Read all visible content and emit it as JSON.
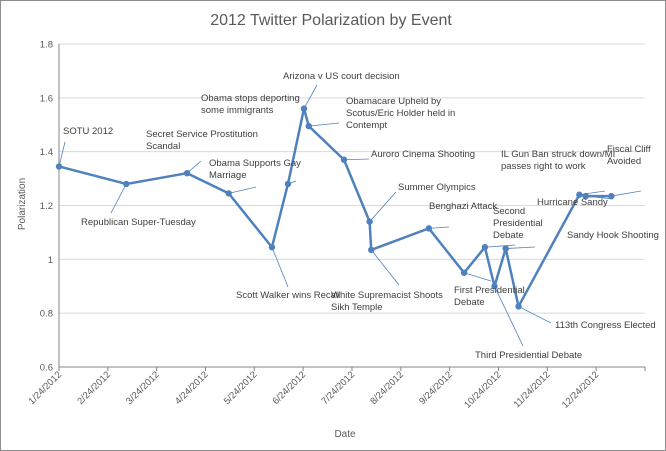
{
  "chart_data": {
    "type": "line",
    "title": "2012 Twitter Polarization by Event",
    "xlabel": "Date",
    "ylabel": "Polarization",
    "ylim": [
      0.6,
      1.8
    ],
    "yticks": [
      "0.6",
      "0.8",
      "1",
      "1.2",
      "1.4",
      "1.6",
      "1.8"
    ],
    "xticks": [
      "1/24/2012",
      "2/24/2012",
      "3/24/2012",
      "4/24/2012",
      "5/24/2012",
      "6/24/2012",
      "7/24/2012",
      "8/24/2012",
      "9/24/2012",
      "10/24/2012",
      "11/24/2012",
      "12/24/2012"
    ],
    "grid": true,
    "legend": "none",
    "line_color": "#4f81bd",
    "points": [
      {
        "x": "2012-01-24",
        "y": 1.345
      },
      {
        "x": "2012-03-06",
        "y": 1.28
      },
      {
        "x": "2012-04-13",
        "y": 1.32
      },
      {
        "x": "2012-05-09",
        "y": 1.245
      },
      {
        "x": "2012-06-05",
        "y": 1.045
      },
      {
        "x": "2012-06-15",
        "y": 1.28
      },
      {
        "x": "2012-06-25",
        "y": 1.56
      },
      {
        "x": "2012-06-28",
        "y": 1.495
      },
      {
        "x": "2012-07-20",
        "y": 1.37
      },
      {
        "x": "2012-08-05",
        "y": 1.14
      },
      {
        "x": "2012-08-06",
        "y": 1.035
      },
      {
        "x": "2012-09-11",
        "y": 1.115
      },
      {
        "x": "2012-10-03",
        "y": 0.95
      },
      {
        "x": "2012-10-16",
        "y": 1.045
      },
      {
        "x": "2012-10-22",
        "y": 0.9
      },
      {
        "x": "2012-10-29",
        "y": 1.04
      },
      {
        "x": "2012-11-06",
        "y": 0.825
      },
      {
        "x": "2012-12-14",
        "y": 1.24
      },
      {
        "x": "2012-12-18",
        "y": 1.235
      },
      {
        "x": "2013-01-03",
        "y": 1.235
      }
    ],
    "annotations": [
      {
        "lines": [
          "SOTU 2012"
        ]
      },
      {
        "lines": [
          "Republican Super-Tuesday"
        ]
      },
      {
        "lines": [
          "Secret Service Prostitution",
          "Scandal"
        ]
      },
      {
        "lines": [
          "Obama Supports Gay",
          "Marriage"
        ]
      },
      {
        "lines": [
          "Scott Walker wins Recall"
        ]
      },
      {
        "lines": [
          "Obama stops deporting",
          "some immigrants"
        ]
      },
      {
        "lines": [
          "Arizona v US court decision"
        ]
      },
      {
        "lines": [
          "Obamacare Upheld by",
          "Scotus/Eric Holder held in",
          "Contempt"
        ]
      },
      {
        "lines": [
          "Auroro Cinema Shooting"
        ]
      },
      {
        "lines": [
          "Summer Olympics"
        ]
      },
      {
        "lines": [
          "White Supremacist Shoots",
          "Sikh Temple"
        ]
      },
      {
        "lines": [
          "Benghazi Attack"
        ]
      },
      {
        "lines": [
          "First Presidential",
          "Debate"
        ]
      },
      {
        "lines": [
          "Second",
          "Presidential",
          "Debate"
        ]
      },
      {
        "lines": [
          "Third Presidential Debate"
        ]
      },
      {
        "lines": [
          "Hurricane Sandy"
        ]
      },
      {
        "lines": [
          "113th Congress Elected"
        ]
      },
      {
        "lines": [
          "IL Gun Ban struck down/MI",
          "passes right to work"
        ]
      },
      {
        "lines": [
          "Sandy Hook Shooting"
        ]
      },
      {
        "lines": [
          "Fiscal Cliff",
          "Avoided"
        ]
      }
    ]
  }
}
